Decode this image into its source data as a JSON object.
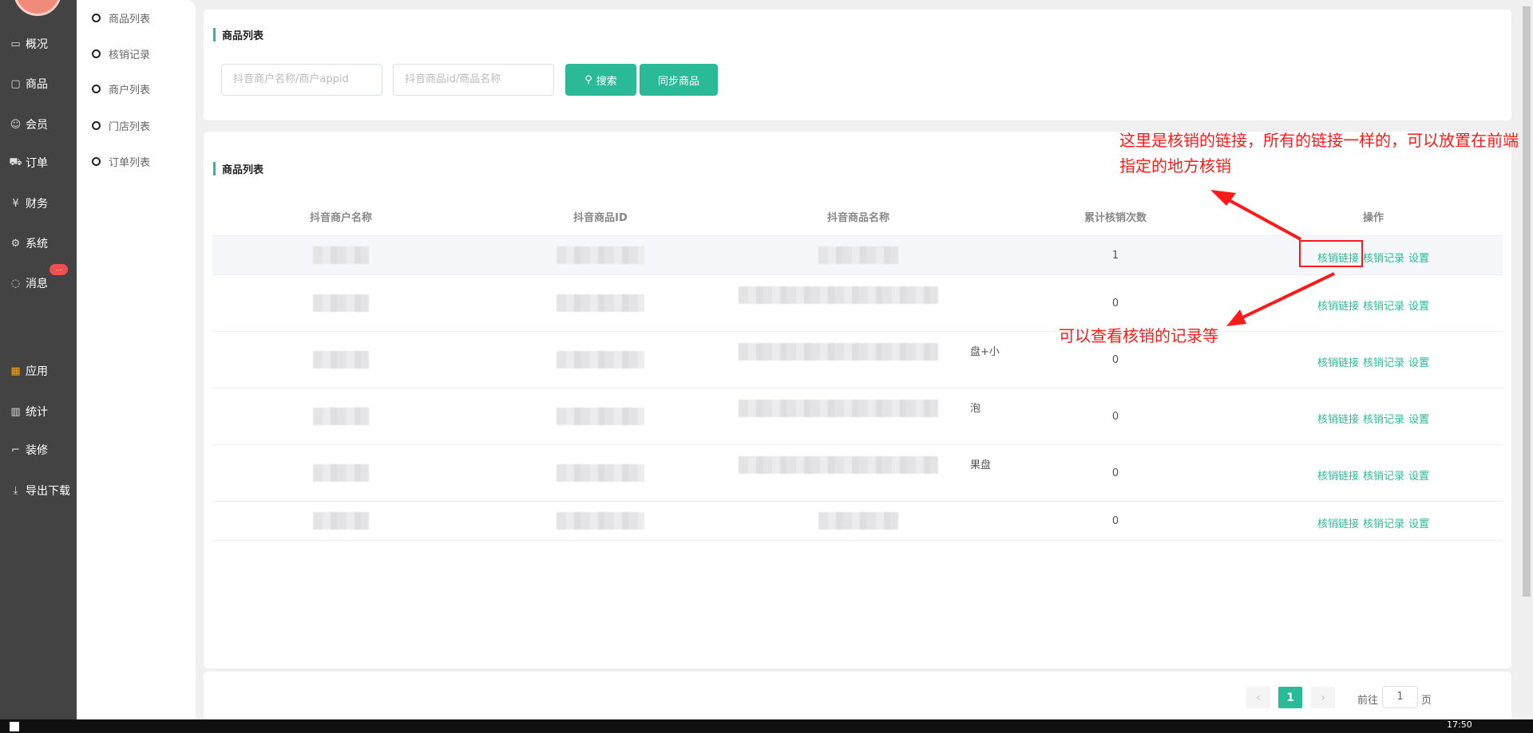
{
  "sidebar": {
    "items": [
      {
        "label": "概况",
        "icon": "chart-screen-icon"
      },
      {
        "label": "商品",
        "icon": "bag-icon"
      },
      {
        "label": "会员",
        "icon": "users-icon"
      },
      {
        "label": "订单",
        "icon": "cart-icon"
      },
      {
        "label": "财务",
        "icon": "yen-icon"
      },
      {
        "label": "系统",
        "icon": "gear-icon"
      },
      {
        "label": "消息",
        "icon": "chat-icon"
      },
      {
        "label": "应用",
        "icon": "apps-icon"
      },
      {
        "label": "统计",
        "icon": "bar-chart-icon"
      },
      {
        "label": "装修",
        "icon": "paint-roller-icon"
      },
      {
        "label": "导出下载",
        "icon": "download-icon"
      }
    ],
    "badge": "..."
  },
  "submenu": {
    "items": [
      "商品列表",
      "核销记录",
      "商户列表",
      "门店列表",
      "订单列表"
    ]
  },
  "search": {
    "title": "商品列表",
    "merchant_placeholder": "抖音商户名称/商户appid",
    "product_placeholder": "抖音商品id/商品名称",
    "search_label": "搜索",
    "sync_label": "同步商品"
  },
  "table": {
    "title": "商品列表",
    "headers": [
      "抖音商户名称",
      "抖音商品ID",
      "抖音商品名称",
      "累计核销次数",
      "操作"
    ],
    "rows": [
      {
        "count": "1",
        "name_fragment": ""
      },
      {
        "count": "0",
        "name_fragment": ""
      },
      {
        "count": "0",
        "name_fragment": "盘+小"
      },
      {
        "count": "0",
        "name_fragment": "泡"
      },
      {
        "count": "0",
        "name_fragment": "果盘"
      },
      {
        "count": "0",
        "name_fragment": ""
      }
    ],
    "ops": [
      "核销链接",
      "核销记录",
      "设置"
    ]
  },
  "annotations": {
    "top": "这里是核销的链接，所有的链接一样的，可以放置在前端指定的地方核销",
    "bottom": "可以查看核销的记录等",
    "color": "#ff1a1a"
  },
  "pagination": {
    "current": "1",
    "goto_label": "前往",
    "goto_value": "1",
    "page_suffix": "页"
  },
  "taskbar": {
    "time": "17:50"
  },
  "colors": {
    "accent": "#2bba98",
    "sidebar": "#434343"
  }
}
